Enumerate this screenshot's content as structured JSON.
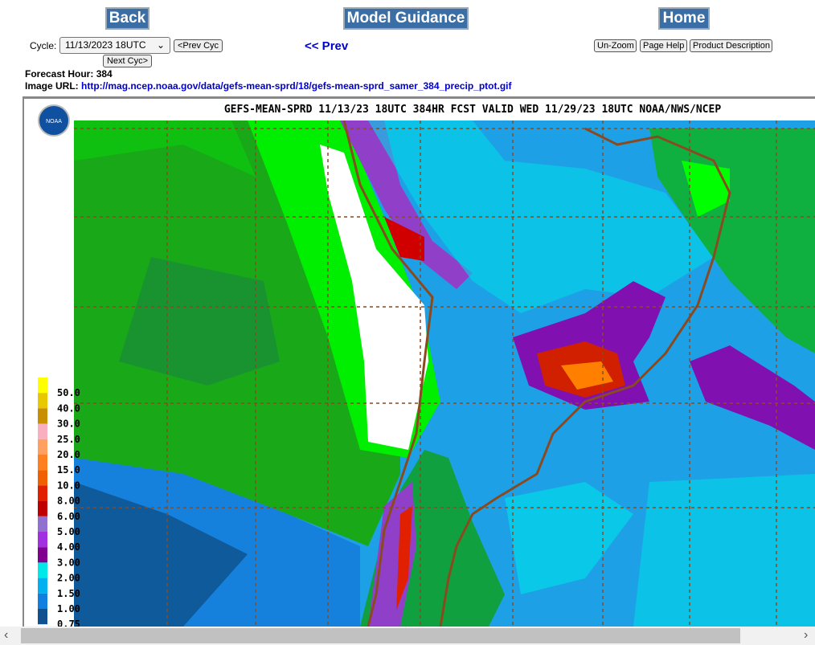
{
  "header": {
    "back": "Back",
    "title": "Model Guidance",
    "home": "Home"
  },
  "controls": {
    "cycle_label": "Cycle:",
    "cycle_value": "11/13/2023 18UTC",
    "prev_cycle": "<Prev Cyc",
    "next_cycle": "Next Cyc>",
    "prev": "<< Prev",
    "unzoom": "Un-Zoom",
    "page_help": "Page Help",
    "product_description": "Product Description"
  },
  "info": {
    "forecast_hour_label": "Forecast Hour:",
    "forecast_hour": "384",
    "image_url_label": "Image URL:",
    "image_url": "http://mag.ncep.noaa.gov/data/gefs-mean-sprd/18/gefs-mean-sprd_samer_384_precip_ptot.gif"
  },
  "map": {
    "title": "GEFS-MEAN-SPRD 11/13/23 18UTC 384HR FCST VALID WED 11/29/23 18UTC NOAA/NWS/NCEP",
    "logo": "NOAA",
    "legend": [
      {
        "label": "50.0",
        "color": "#ffff00"
      },
      {
        "label": "40.0",
        "color": "#e8c800"
      },
      {
        "label": "30.0",
        "color": "#c89000"
      },
      {
        "label": "25.0",
        "color": "#f8b0c0"
      },
      {
        "label": "20.0",
        "color": "#ffa060"
      },
      {
        "label": "15.0",
        "color": "#ff8020"
      },
      {
        "label": "10.0",
        "color": "#f06000"
      },
      {
        "label": "8.00",
        "color": "#e02000"
      },
      {
        "label": "6.00",
        "color": "#c00000"
      },
      {
        "label": "5.00",
        "color": "#9070d0"
      },
      {
        "label": "4.00",
        "color": "#a030e0"
      },
      {
        "label": "3.00",
        "color": "#800090"
      },
      {
        "label": "2.00",
        "color": "#00e8e8"
      },
      {
        "label": "1.50",
        "color": "#00b0f0"
      },
      {
        "label": "1.00",
        "color": "#1080e0"
      },
      {
        "label": "0.75",
        "color": "#105090"
      }
    ]
  }
}
